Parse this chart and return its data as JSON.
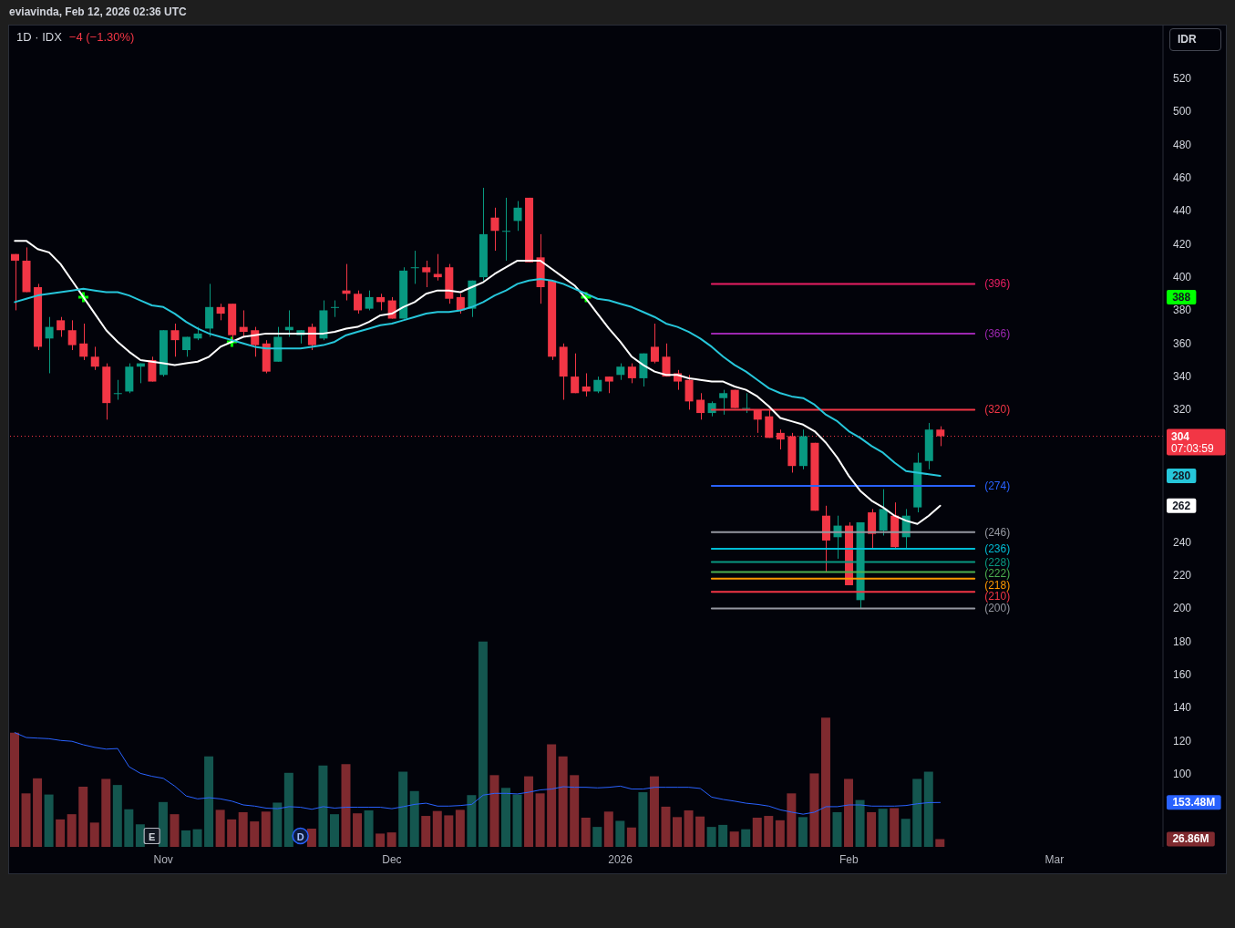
{
  "chart_data": {
    "type": "candlestick",
    "title": "1D · IDX",
    "subtitle": "−4 (−1.30%)",
    "ylabel": "IDR",
    "annotations": [
      "eviavinda, Feb 12, 2026 02:36 UTC",
      "07:03:59",
      "E",
      "D"
    ],
    "categories": [
      null,
      null,
      null,
      null,
      null,
      null,
      null,
      null,
      null,
      null,
      null,
      null,
      null,
      "Nov",
      null,
      null,
      null,
      null,
      null,
      null,
      null,
      null,
      null,
      null,
      null,
      null,
      null,
      null,
      null,
      null,
      null,
      null,
      null,
      "Dec",
      null,
      null,
      null,
      null,
      null,
      null,
      null,
      null,
      null,
      null,
      null,
      null,
      null,
      null,
      null,
      null,
      null,
      null,
      null,
      "2026",
      null,
      null,
      null,
      null,
      null,
      null,
      null,
      null,
      null,
      null,
      null,
      null,
      null,
      null,
      null,
      null,
      null,
      null,
      null,
      "Feb",
      null,
      null,
      null,
      null,
      null,
      null,
      null,
      null,
      null,
      null,
      null,
      null,
      null,
      null,
      null,
      null,
      null,
      "Mar",
      null,
      null,
      null,
      null,
      null,
      null,
      null,
      null,
      null
    ],
    "ohlc": [
      [
        414,
        414,
        380,
        410
      ],
      [
        410,
        418,
        391,
        391
      ],
      [
        394,
        396,
        356,
        358
      ],
      [
        363,
        376,
        342,
        370
      ],
      [
        374,
        376,
        364,
        368
      ],
      [
        368,
        374,
        356,
        359
      ],
      [
        360,
        372,
        350,
        352
      ],
      [
        352,
        358,
        344,
        346
      ],
      [
        346,
        348,
        314,
        324
      ],
      [
        330,
        338,
        326,
        330
      ],
      [
        331,
        348,
        330,
        346
      ],
      [
        346,
        348,
        336,
        348
      ],
      [
        350,
        352,
        337,
        337
      ],
      [
        341,
        368,
        340,
        368
      ],
      [
        368,
        372,
        352,
        362
      ],
      [
        356,
        364,
        352,
        364
      ],
      [
        363,
        370,
        362,
        366
      ],
      [
        369,
        396,
        364,
        382
      ],
      [
        382,
        384,
        374,
        378
      ],
      [
        384,
        384,
        362,
        365
      ],
      [
        370,
        380,
        364,
        367
      ],
      [
        368,
        370,
        352,
        359
      ],
      [
        360,
        362,
        342,
        343
      ],
      [
        349,
        370,
        349,
        364
      ],
      [
        368,
        380,
        364,
        370
      ],
      [
        365,
        368,
        360,
        368
      ],
      [
        370,
        372,
        356,
        359
      ],
      [
        363,
        386,
        362,
        380
      ],
      [
        382,
        386,
        376,
        382
      ],
      [
        392,
        408,
        386,
        390
      ],
      [
        390,
        392,
        378,
        380
      ],
      [
        381,
        392,
        380,
        388
      ],
      [
        388,
        390,
        380,
        385
      ],
      [
        386,
        388,
        375,
        375
      ],
      [
        375,
        406,
        375,
        404
      ],
      [
        406,
        416,
        396,
        406
      ],
      [
        406,
        410,
        394,
        403
      ],
      [
        402,
        414,
        398,
        400
      ],
      [
        406,
        408,
        384,
        387
      ],
      [
        388,
        390,
        378,
        380
      ],
      [
        381,
        398,
        376,
        398
      ],
      [
        400,
        454,
        398,
        426
      ],
      [
        436,
        442,
        416,
        428
      ],
      [
        428,
        448,
        410,
        428
      ],
      [
        434,
        446,
        428,
        442
      ],
      [
        448,
        448,
        409,
        409
      ],
      [
        412,
        426,
        384,
        394
      ],
      [
        398,
        398,
        350,
        352
      ],
      [
        358,
        360,
        326,
        340
      ],
      [
        340,
        354,
        330,
        330
      ],
      [
        334,
        342,
        328,
        331
      ],
      [
        331,
        340,
        330,
        338
      ],
      [
        340,
        340,
        330,
        337
      ],
      [
        341,
        348,
        338,
        346
      ],
      [
        346,
        348,
        336,
        339
      ],
      [
        339,
        354,
        334,
        354
      ],
      [
        358,
        372,
        348,
        349
      ],
      [
        352,
        360,
        340,
        340
      ],
      [
        342,
        344,
        332,
        337
      ],
      [
        338,
        341,
        320,
        325
      ],
      [
        326,
        330,
        314,
        318
      ],
      [
        318,
        325,
        316,
        324
      ],
      [
        327,
        332,
        317,
        330
      ],
      [
        332,
        332,
        321,
        321
      ],
      [
        321,
        330,
        318,
        321
      ],
      [
        320,
        320,
        306,
        314
      ],
      [
        316,
        320,
        303,
        303
      ],
      [
        306,
        308,
        296,
        302
      ],
      [
        304,
        306,
        282,
        286
      ],
      [
        286,
        308,
        284,
        304
      ],
      [
        300,
        300,
        259,
        259
      ],
      [
        256,
        262,
        222,
        241
      ],
      [
        243,
        256,
        230,
        250
      ],
      [
        250,
        252,
        214,
        214
      ],
      [
        205,
        252,
        200,
        252
      ],
      [
        258,
        260,
        236,
        245
      ],
      [
        247,
        272,
        244,
        260
      ],
      [
        256,
        264,
        236,
        237
      ],
      [
        243,
        260,
        236,
        256
      ],
      [
        261,
        294,
        258,
        288
      ],
      [
        289,
        312,
        284,
        308
      ],
      [
        308,
        310,
        298,
        304
      ],
      null,
      null,
      null,
      null,
      null,
      null,
      null,
      null,
      null,
      null,
      null,
      null,
      null,
      null,
      null,
      null,
      null,
      null,
      null
    ],
    "colors": [
      "#f23645",
      "#f23645",
      "#f23645",
      "#089981",
      "#f23645",
      "#f23645",
      "#f23645",
      "#f23645",
      "#f23645",
      "#089981",
      "#089981",
      "#089981",
      "#f23645",
      "#089981",
      "#f23645",
      "#089981",
      "#089981",
      "#089981",
      "#f23645",
      "#f23645",
      "#f23645",
      "#f23645",
      "#f23645",
      "#089981",
      "#089981",
      "#089981",
      "#f23645",
      "#089981",
      "#089981",
      "#f23645",
      "#f23645",
      "#089981",
      "#f23645",
      "#f23645",
      "#089981",
      "#089981",
      "#f23645",
      "#f23645",
      "#f23645",
      "#f23645",
      "#089981",
      "#089981",
      "#f23645",
      "#089981",
      "#089981",
      "#f23645",
      "#f23645",
      "#f23645",
      "#f23645",
      "#f23645",
      "#f23645",
      "#089981",
      "#f23645",
      "#089981",
      "#f23645",
      "#089981",
      "#f23645",
      "#f23645",
      "#f23645",
      "#f23645",
      "#f23645",
      "#089981",
      "#089981",
      "#f23645",
      "#089981",
      "#f23645",
      "#f23645",
      "#f23645",
      "#f23645",
      "#089981",
      "#f23645",
      "#f23645",
      "#089981",
      "#f23645",
      "#089981",
      "#f23645",
      "#089981",
      "#f23645",
      "#089981",
      "#089981",
      "#089981",
      "#f23645",
      null,
      null,
      null,
      null,
      null,
      null,
      null,
      null,
      null,
      null,
      null,
      null,
      null,
      null,
      null,
      null,
      null,
      null,
      null
    ],
    "series": [
      {
        "type": "bar",
        "axis": "y2",
        "values": [
          395,
          185,
          237,
          181,
          95,
          113,
          208,
          84,
          235,
          214,
          130,
          78,
          null,
          155,
          113,
          57,
          61,
          313,
          128,
          95,
          120,
          88,
          122,
          153,
          256,
          null,
          63,
          281,
          113,
          286,
          116,
          126,
          46,
          50,
          260,
          193,
          107,
          124,
          109,
          128,
          179,
          710,
          248,
          204,
          181,
          244,
          185,
          355,
          313,
          248,
          101,
          69,
          122,
          90,
          67,
          189,
          244,
          139,
          103,
          126,
          105,
          69,
          76,
          53,
          61,
          101,
          107,
          92,
          185,
          103,
          254,
          447,
          120,
          235,
          162,
          120,
          132,
          134,
          97,
          235,
          260,
          26.86,
          null,
          null,
          null,
          null,
          null,
          null,
          null,
          null,
          null,
          null,
          null,
          null,
          null,
          null,
          null,
          null,
          null,
          null,
          null
        ],
        "colors": [
          "#7f2a2f",
          "#7f2a2f",
          "#7f2a2f",
          "#14564f",
          "#7f2a2f",
          "#7f2a2f",
          "#7f2a2f",
          "#7f2a2f",
          "#7f2a2f",
          "#14564f",
          "#14564f",
          "#14564f",
          null,
          "#14564f",
          "#7f2a2f",
          "#14564f",
          "#14564f",
          "#14564f",
          "#7f2a2f",
          "#7f2a2f",
          "#7f2a2f",
          "#7f2a2f",
          "#7f2a2f",
          "#14564f",
          "#14564f",
          null,
          "#7f2a2f",
          "#14564f",
          "#14564f",
          "#7f2a2f",
          "#7f2a2f",
          "#14564f",
          "#7f2a2f",
          "#7f2a2f",
          "#14564f",
          "#14564f",
          "#7f2a2f",
          "#7f2a2f",
          "#7f2a2f",
          "#7f2a2f",
          "#14564f",
          "#14564f",
          "#7f2a2f",
          "#14564f",
          "#14564f",
          "#7f2a2f",
          "#7f2a2f",
          "#7f2a2f",
          "#7f2a2f",
          "#7f2a2f",
          "#7f2a2f",
          "#14564f",
          "#7f2a2f",
          "#14564f",
          "#7f2a2f",
          "#14564f",
          "#7f2a2f",
          "#7f2a2f",
          "#7f2a2f",
          "#7f2a2f",
          "#7f2a2f",
          "#14564f",
          "#14564f",
          "#7f2a2f",
          "#14564f",
          "#7f2a2f",
          "#7f2a2f",
          "#7f2a2f",
          "#7f2a2f",
          "#14564f",
          "#7f2a2f",
          "#7f2a2f",
          "#14564f",
          "#7f2a2f",
          "#14564f",
          "#7f2a2f",
          "#14564f",
          "#7f2a2f",
          "#14564f",
          "#14564f",
          "#14564f",
          "#7f2a2f",
          null,
          null,
          null,
          null,
          null,
          null,
          null,
          null,
          null,
          null,
          null,
          null,
          null,
          null,
          null,
          null,
          null,
          null,
          null
        ]
      },
      {
        "type": "line",
        "axis": "y2",
        "color": "#2962ff",
        "values": [
          395,
          378,
          376,
          374,
          368,
          365,
          353,
          344,
          338,
          340,
          277,
          254,
          244,
          237,
          210,
          176,
          166,
          170,
          166,
          158,
          145,
          141,
          134,
          132,
          139,
          137,
          130,
          139,
          134,
          137,
          137,
          137,
          137,
          132,
          139,
          147,
          151,
          141,
          141,
          143,
          147,
          179,
          185,
          185,
          183,
          189,
          197,
          200,
          208,
          206,
          206,
          204,
          206,
          210,
          200,
          200,
          206,
          206,
          206,
          206,
          202,
          172,
          164,
          158,
          151,
          147,
          141,
          128,
          120,
          113,
          120,
          139,
          139,
          145,
          145,
          141,
          141,
          141,
          143,
          149,
          153,
          153.48,
          null,
          null,
          null,
          null,
          null,
          null,
          null,
          null,
          null,
          null,
          null,
          null,
          null,
          null,
          null,
          null,
          null,
          null,
          null
        ]
      },
      {
        "type": "line",
        "name": "(396)",
        "color": "#e91e63",
        "values": [
          null,
          null,
          null,
          null,
          null,
          null,
          null,
          null,
          null,
          null,
          null,
          null,
          null,
          null,
          null,
          null,
          null,
          null,
          null,
          null,
          null,
          null,
          null,
          null,
          null,
          null,
          null,
          null,
          null,
          null,
          null,
          null,
          null,
          null,
          null,
          null,
          null,
          null,
          null,
          null,
          null,
          null,
          null,
          null,
          null,
          null,
          null,
          null,
          null,
          null,
          null,
          null,
          null,
          null,
          null,
          null,
          null,
          null,
          null,
          null,
          null,
          396,
          396,
          396,
          396,
          396,
          396,
          396,
          396,
          396,
          396,
          396,
          396,
          396,
          396,
          396,
          396,
          396,
          396,
          396,
          396,
          396,
          396,
          396,
          396,
          null,
          null,
          null,
          null,
          null,
          null,
          null,
          null,
          null,
          null,
          null,
          null,
          null,
          null,
          null,
          null
        ]
      },
      {
        "type": "line",
        "name": "(366)",
        "color": "#9c27b0",
        "values": [
          null,
          null,
          null,
          null,
          null,
          null,
          null,
          null,
          null,
          null,
          null,
          null,
          null,
          null,
          null,
          null,
          null,
          null,
          null,
          null,
          null,
          null,
          null,
          null,
          null,
          null,
          null,
          null,
          null,
          null,
          null,
          null,
          null,
          null,
          null,
          null,
          null,
          null,
          null,
          null,
          null,
          null,
          null,
          null,
          null,
          null,
          null,
          null,
          null,
          null,
          null,
          null,
          null,
          null,
          null,
          null,
          null,
          null,
          null,
          null,
          null,
          366,
          366,
          366,
          366,
          366,
          366,
          366,
          366,
          366,
          366,
          366,
          366,
          366,
          366,
          366,
          366,
          366,
          366,
          366,
          366,
          366,
          366,
          366,
          366,
          null,
          null,
          null,
          null,
          null,
          null,
          null,
          null,
          null,
          null,
          null,
          null,
          null,
          null,
          null,
          null
        ]
      },
      {
        "type": "line",
        "name": "(320)",
        "color": "#f23645",
        "values": [
          null,
          null,
          null,
          null,
          null,
          null,
          null,
          null,
          null,
          null,
          null,
          null,
          null,
          null,
          null,
          null,
          null,
          null,
          null,
          null,
          null,
          null,
          null,
          null,
          null,
          null,
          null,
          null,
          null,
          null,
          null,
          null,
          null,
          null,
          null,
          null,
          null,
          null,
          null,
          null,
          null,
          null,
          null,
          null,
          null,
          null,
          null,
          null,
          null,
          null,
          null,
          null,
          null,
          null,
          null,
          null,
          null,
          null,
          null,
          null,
          null,
          320,
          320,
          320,
          320,
          320,
          320,
          320,
          320,
          320,
          320,
          320,
          320,
          320,
          320,
          320,
          320,
          320,
          320,
          320,
          320,
          320,
          320,
          320,
          320,
          null,
          null,
          null,
          null,
          null,
          null,
          null,
          null,
          null,
          null,
          null,
          null,
          null,
          null,
          null,
          null
        ]
      },
      {
        "type": "line",
        "name": "(274)",
        "color": "#2962ff",
        "values": [
          null,
          null,
          null,
          null,
          null,
          null,
          null,
          null,
          null,
          null,
          null,
          null,
          null,
          null,
          null,
          null,
          null,
          null,
          null,
          null,
          null,
          null,
          null,
          null,
          null,
          null,
          null,
          null,
          null,
          null,
          null,
          null,
          null,
          null,
          null,
          null,
          null,
          null,
          null,
          null,
          null,
          null,
          null,
          null,
          null,
          null,
          null,
          null,
          null,
          null,
          null,
          null,
          null,
          null,
          null,
          null,
          null,
          null,
          null,
          null,
          null,
          274,
          274,
          274,
          274,
          274,
          274,
          274,
          274,
          274,
          274,
          274,
          274,
          274,
          274,
          274,
          274,
          274,
          274,
          274,
          274,
          274,
          274,
          274,
          274,
          null,
          null,
          null,
          null,
          null,
          null,
          null,
          null,
          null,
          null,
          null,
          null,
          null,
          null,
          null,
          null
        ]
      },
      {
        "type": "line",
        "name": "(246)",
        "color": "#9598a1",
        "values": [
          null,
          null,
          null,
          null,
          null,
          null,
          null,
          null,
          null,
          null,
          null,
          null,
          null,
          null,
          null,
          null,
          null,
          null,
          null,
          null,
          null,
          null,
          null,
          null,
          null,
          null,
          null,
          null,
          null,
          null,
          null,
          null,
          null,
          null,
          null,
          null,
          null,
          null,
          null,
          null,
          null,
          null,
          null,
          null,
          null,
          null,
          null,
          null,
          null,
          null,
          null,
          null,
          null,
          null,
          null,
          null,
          null,
          null,
          null,
          null,
          null,
          246,
          246,
          246,
          246,
          246,
          246,
          246,
          246,
          246,
          246,
          246,
          246,
          246,
          246,
          246,
          246,
          246,
          246,
          246,
          246,
          246,
          246,
          246,
          246,
          null,
          null,
          null,
          null,
          null,
          null,
          null,
          null,
          null,
          null,
          null,
          null,
          null,
          null,
          null,
          null
        ]
      },
      {
        "type": "line",
        "name": "(236)",
        "color": "#00bcd4",
        "values": [
          null,
          null,
          null,
          null,
          null,
          null,
          null,
          null,
          null,
          null,
          null,
          null,
          null,
          null,
          null,
          null,
          null,
          null,
          null,
          null,
          null,
          null,
          null,
          null,
          null,
          null,
          null,
          null,
          null,
          null,
          null,
          null,
          null,
          null,
          null,
          null,
          null,
          null,
          null,
          null,
          null,
          null,
          null,
          null,
          null,
          null,
          null,
          null,
          null,
          null,
          null,
          null,
          null,
          null,
          null,
          null,
          null,
          null,
          null,
          null,
          null,
          236,
          236,
          236,
          236,
          236,
          236,
          236,
          236,
          236,
          236,
          236,
          236,
          236,
          236,
          236,
          236,
          236,
          236,
          236,
          236,
          236,
          236,
          236,
          236,
          null,
          null,
          null,
          null,
          null,
          null,
          null,
          null,
          null,
          null,
          null,
          null,
          null,
          null,
          null,
          null
        ]
      },
      {
        "type": "line",
        "name": "(228)",
        "color": "#089981",
        "values": [
          null,
          null,
          null,
          null,
          null,
          null,
          null,
          null,
          null,
          null,
          null,
          null,
          null,
          null,
          null,
          null,
          null,
          null,
          null,
          null,
          null,
          null,
          null,
          null,
          null,
          null,
          null,
          null,
          null,
          null,
          null,
          null,
          null,
          null,
          null,
          null,
          null,
          null,
          null,
          null,
          null,
          null,
          null,
          null,
          null,
          null,
          null,
          null,
          null,
          null,
          null,
          null,
          null,
          null,
          null,
          null,
          null,
          null,
          null,
          null,
          null,
          228,
          228,
          228,
          228,
          228,
          228,
          228,
          228,
          228,
          228,
          228,
          228,
          228,
          228,
          228,
          228,
          228,
          228,
          228,
          228,
          228,
          228,
          228,
          228,
          null,
          null,
          null,
          null,
          null,
          null,
          null,
          null,
          null,
          null,
          null,
          null,
          null,
          null,
          null,
          null
        ]
      },
      {
        "type": "line",
        "name": "(222)",
        "color": "#4caf50",
        "values": [
          null,
          null,
          null,
          null,
          null,
          null,
          null,
          null,
          null,
          null,
          null,
          null,
          null,
          null,
          null,
          null,
          null,
          null,
          null,
          null,
          null,
          null,
          null,
          null,
          null,
          null,
          null,
          null,
          null,
          null,
          null,
          null,
          null,
          null,
          null,
          null,
          null,
          null,
          null,
          null,
          null,
          null,
          null,
          null,
          null,
          null,
          null,
          null,
          null,
          null,
          null,
          null,
          null,
          null,
          null,
          null,
          null,
          null,
          null,
          null,
          null,
          222,
          222,
          222,
          222,
          222,
          222,
          222,
          222,
          222,
          222,
          222,
          222,
          222,
          222,
          222,
          222,
          222,
          222,
          222,
          222,
          222,
          222,
          222,
          222,
          null,
          null,
          null,
          null,
          null,
          null,
          null,
          null,
          null,
          null,
          null,
          null,
          null,
          null,
          null,
          null
        ]
      },
      {
        "type": "line",
        "name": "(218)",
        "color": "#ff9800",
        "values": [
          null,
          null,
          null,
          null,
          null,
          null,
          null,
          null,
          null,
          null,
          null,
          null,
          null,
          null,
          null,
          null,
          null,
          null,
          null,
          null,
          null,
          null,
          null,
          null,
          null,
          null,
          null,
          null,
          null,
          null,
          null,
          null,
          null,
          null,
          null,
          null,
          null,
          null,
          null,
          null,
          null,
          null,
          null,
          null,
          null,
          null,
          null,
          null,
          null,
          null,
          null,
          null,
          null,
          null,
          null,
          null,
          null,
          null,
          null,
          null,
          null,
          218,
          218,
          218,
          218,
          218,
          218,
          218,
          218,
          218,
          218,
          218,
          218,
          218,
          218,
          218,
          218,
          218,
          218,
          218,
          218,
          218,
          218,
          218,
          218,
          null,
          null,
          null,
          null,
          null,
          null,
          null,
          null,
          null,
          null,
          null,
          null,
          null,
          null,
          null,
          null
        ]
      },
      {
        "type": "line",
        "name": "(210)",
        "color": "#f23645",
        "values": [
          null,
          null,
          null,
          null,
          null,
          null,
          null,
          null,
          null,
          null,
          null,
          null,
          null,
          null,
          null,
          null,
          null,
          null,
          null,
          null,
          null,
          null,
          null,
          null,
          null,
          null,
          null,
          null,
          null,
          null,
          null,
          null,
          null,
          null,
          null,
          null,
          null,
          null,
          null,
          null,
          null,
          null,
          null,
          null,
          null,
          null,
          null,
          null,
          null,
          null,
          null,
          null,
          null,
          null,
          null,
          null,
          null,
          null,
          null,
          null,
          null,
          210,
          210,
          210,
          210,
          210,
          210,
          210,
          210,
          210,
          210,
          210,
          210,
          210,
          210,
          210,
          210,
          210,
          210,
          210,
          210,
          210,
          210,
          210,
          210,
          null,
          null,
          null,
          null,
          null,
          null,
          null,
          null,
          null,
          null,
          null,
          null,
          null,
          null,
          null,
          null
        ]
      },
      {
        "type": "line",
        "name": "(200)",
        "color": "#9598a1",
        "values": [
          null,
          null,
          null,
          null,
          null,
          null,
          null,
          null,
          null,
          null,
          null,
          null,
          null,
          null,
          null,
          null,
          null,
          null,
          null,
          null,
          null,
          null,
          null,
          null,
          null,
          null,
          null,
          null,
          null,
          null,
          null,
          null,
          null,
          null,
          null,
          null,
          null,
          null,
          null,
          null,
          null,
          null,
          null,
          null,
          null,
          null,
          null,
          null,
          null,
          null,
          null,
          null,
          null,
          null,
          null,
          null,
          null,
          null,
          null,
          null,
          null,
          200,
          200,
          200,
          200,
          200,
          200,
          200,
          200,
          200,
          200,
          200,
          200,
          200,
          200,
          200,
          200,
          200,
          200,
          200,
          200,
          200,
          200,
          200,
          200,
          null,
          null,
          null,
          null,
          null,
          null,
          null,
          null,
          null,
          null,
          null,
          null,
          null,
          null,
          null,
          null
        ]
      },
      {
        "type": "line",
        "color": "#ffffff",
        "values": [
          422,
          422,
          417,
          415,
          408,
          398,
          388,
          378,
          368,
          361,
          355,
          350,
          349,
          348,
          347,
          348,
          349,
          352,
          358,
          361,
          364,
          365,
          366,
          366,
          366,
          366,
          366,
          366,
          367,
          369,
          370,
          373,
          377,
          378,
          382,
          385,
          390,
          392,
          392,
          391,
          394,
          397,
          402,
          406,
          410,
          410,
          410,
          405,
          400,
          395,
          387,
          378,
          369,
          361,
          352,
          347,
          343,
          341,
          341,
          339,
          338,
          337,
          337,
          334,
          332,
          328,
          322,
          315,
          313,
          311,
          307,
          300,
          291,
          280,
          271,
          265,
          261,
          256,
          253,
          251,
          256,
          262,
          null,
          null,
          null,
          null,
          null,
          null,
          null,
          null,
          null,
          null,
          null,
          null,
          null,
          null,
          null,
          null,
          null,
          null,
          null
        ]
      },
      {
        "type": "line",
        "color": "#26c6da",
        "values": [
          385,
          387,
          389,
          390,
          391,
          392,
          393,
          392,
          391,
          391,
          389,
          386,
          383,
          382,
          378,
          373,
          369,
          366,
          364,
          362,
          360,
          358,
          357,
          357,
          357,
          357,
          358,
          359,
          361,
          365,
          367,
          369,
          371,
          372,
          374,
          376,
          378,
          379,
          379,
          380,
          382,
          385,
          389,
          392,
          396,
          398,
          399,
          398,
          396,
          393,
          390,
          387,
          386,
          384,
          382,
          379,
          376,
          372,
          370,
          367,
          363,
          358,
          352,
          347,
          343,
          338,
          333,
          330,
          328,
          327,
          323,
          317,
          313,
          307,
          303,
          298,
          294,
          288,
          283,
          282,
          281,
          280,
          null,
          null,
          null,
          null,
          null,
          null,
          null,
          null,
          null,
          null,
          null,
          null,
          null,
          null,
          null,
          null,
          null,
          null,
          null
        ]
      },
      {
        "type": "scatter",
        "color": "#00ff00",
        "marker": "cross",
        "values": [
          null,
          null,
          null,
          null,
          null,
          null,
          388,
          null,
          null,
          null,
          null,
          null,
          null,
          null,
          null,
          null,
          null,
          null,
          null,
          361,
          null,
          null,
          null,
          null,
          null,
          null,
          null,
          null,
          null,
          null,
          null,
          null,
          null,
          null,
          null,
          null,
          null,
          null,
          null,
          null,
          null,
          null,
          null,
          null,
          null,
          null,
          null,
          null,
          null,
          null,
          388,
          null,
          null,
          null,
          null,
          null,
          null,
          null,
          null,
          null,
          null,
          null,
          null,
          null,
          null,
          null,
          null,
          null,
          null,
          null,
          null,
          null,
          null,
          null,
          null,
          null,
          null,
          null,
          null,
          null,
          null,
          null,
          null,
          null,
          null,
          null,
          null,
          null,
          null,
          null,
          null,
          null,
          null,
          null,
          null,
          null,
          null,
          null,
          null,
          null,
          null
        ]
      }
    ],
    "ylim": [
      56,
      552
    ],
    "yticks": [
      100,
      120,
      140,
      160,
      180,
      200,
      220,
      240,
      262,
      280,
      320,
      340,
      360,
      380,
      388,
      400,
      420,
      440,
      460,
      480,
      500,
      520
    ],
    "y2lim": [
      0,
      2840
    ],
    "y2ticks": [
      {
        "value": 26.86,
        "label": "26.86M"
      },
      {
        "value": 153.48,
        "label": "153.48M"
      }
    ],
    "ref_lines": [
      {
        "axis": "y",
        "value": 304,
        "label": "304",
        "color": "#f23645",
        "line_style": "dotted"
      }
    ]
  }
}
